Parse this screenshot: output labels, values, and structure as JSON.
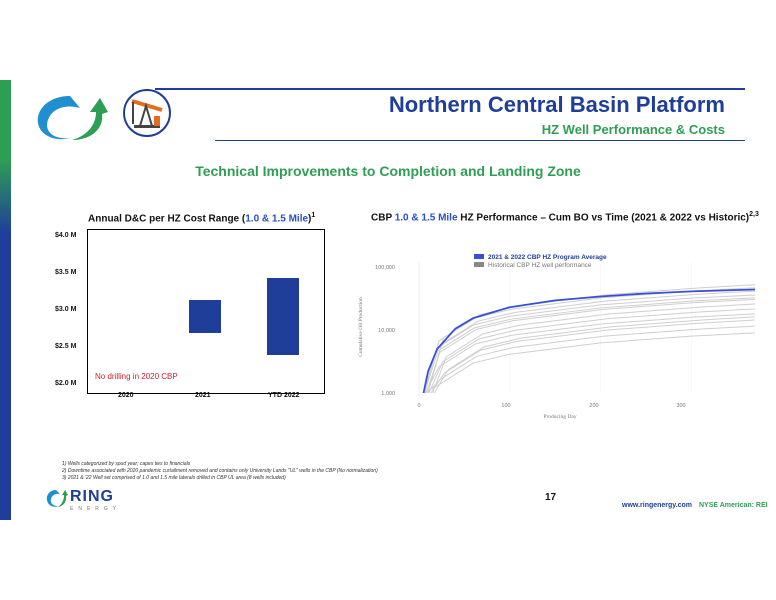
{
  "header": {
    "title": "Northern Central Basin Platform",
    "subtitle": "HZ Well Performance & Costs"
  },
  "headline": "Technical Improvements to Completion and Landing Zone",
  "cost_chart": {
    "title_prefix": "Annual D&C per HZ Cost Range (",
    "title_highlight": "1.0 & 1.5 Mile",
    "title_suffix": ")",
    "title_sup": "1",
    "annotation": "No drilling in 2020 CBP",
    "ytick_labels": [
      "$4.0 M",
      "$3.5 M",
      "$3.0 M",
      "$2.5 M",
      "$2.0 M"
    ]
  },
  "perf_chart": {
    "title_prefix": "CBP ",
    "title_highlight": "1.0 & 1.5 Mile",
    "title_suffix": " HZ Performance – Cum BO vs Time (2021 & 2022 vs Historic)",
    "title_sup": "2,3",
    "legend": [
      "2021 & 2022 CBP HZ Program Average",
      "Historical CBP HZ well performance"
    ],
    "xlabel": "Producing Day",
    "ylabel": "Cumulative Oil Production",
    "ytick_labels": [
      "100,000",
      "10,000",
      "1,000"
    ],
    "xtick_labels": [
      "0",
      "100",
      "200",
      "300"
    ]
  },
  "chart_data": [
    {
      "type": "bar",
      "title": "Annual D&C per HZ Cost Range (1.0 & 1.5 Mile)",
      "categories": [
        "2020",
        "2021",
        "YTD 2022"
      ],
      "ranges": [
        null,
        [
          2.7,
          3.15
        ],
        [
          2.4,
          3.45
        ]
      ],
      "units": "$M",
      "ylim": [
        2.0,
        4.0
      ],
      "color": "#1f3e9a",
      "grid": false
    },
    {
      "type": "line",
      "title": "CBP 1.0 & 1.5 Mile HZ Performance – Cum BO vs Time (2021 & 2022 vs Historic)",
      "xlabel": "Producing Day",
      "ylabel": "Cumulative Oil Production",
      "yscale": "log",
      "ylim": [
        1000,
        100000
      ],
      "xlim": [
        0,
        370
      ],
      "legend": "top-left",
      "series": [
        {
          "name": "2021 & 2022 CBP HZ Program Average",
          "color": "#3a4fd8",
          "x": [
            5,
            10,
            20,
            40,
            60,
            100,
            150,
            200,
            250,
            300,
            370
          ],
          "y": [
            1000,
            2200,
            5000,
            10500,
            15500,
            23000,
            29500,
            34000,
            38000,
            41000,
            44000
          ]
        },
        {
          "name": "Historical CBP HZ well performance",
          "color": "#cfcfcf",
          "x": [
            5,
            20,
            60,
            100,
            200,
            300,
            370
          ],
          "y": [
            900,
            5200,
            12000,
            16500,
            25000,
            32000,
            36000
          ]
        }
      ]
    }
  ],
  "footnotes": [
    "1)   Wells categorized by spud year; capex ties to financials",
    "2)   Downtime associated with 2020 pandemic curtailment removed and contains only University Lands \"UL\" wells in the CBP (No normalization)",
    "3)   2021 & '22 Well set comprised of 1.0 and 1.5 mile laterals drilled in CBP UL area (8 wells included)"
  ],
  "footer": {
    "page_number": "17",
    "website": "www.ringenergy.com",
    "ticker": "NYSE American: REI",
    "logo_text": "RING",
    "logo_sub": "ENERGY"
  },
  "icons": [
    "ring-swoosh-logo-icon",
    "pumpjack-icon"
  ],
  "colors": {
    "brand_blue": "#1f3e9a",
    "brand_green": "#2f9e55",
    "accent_red": "#d0202a"
  }
}
